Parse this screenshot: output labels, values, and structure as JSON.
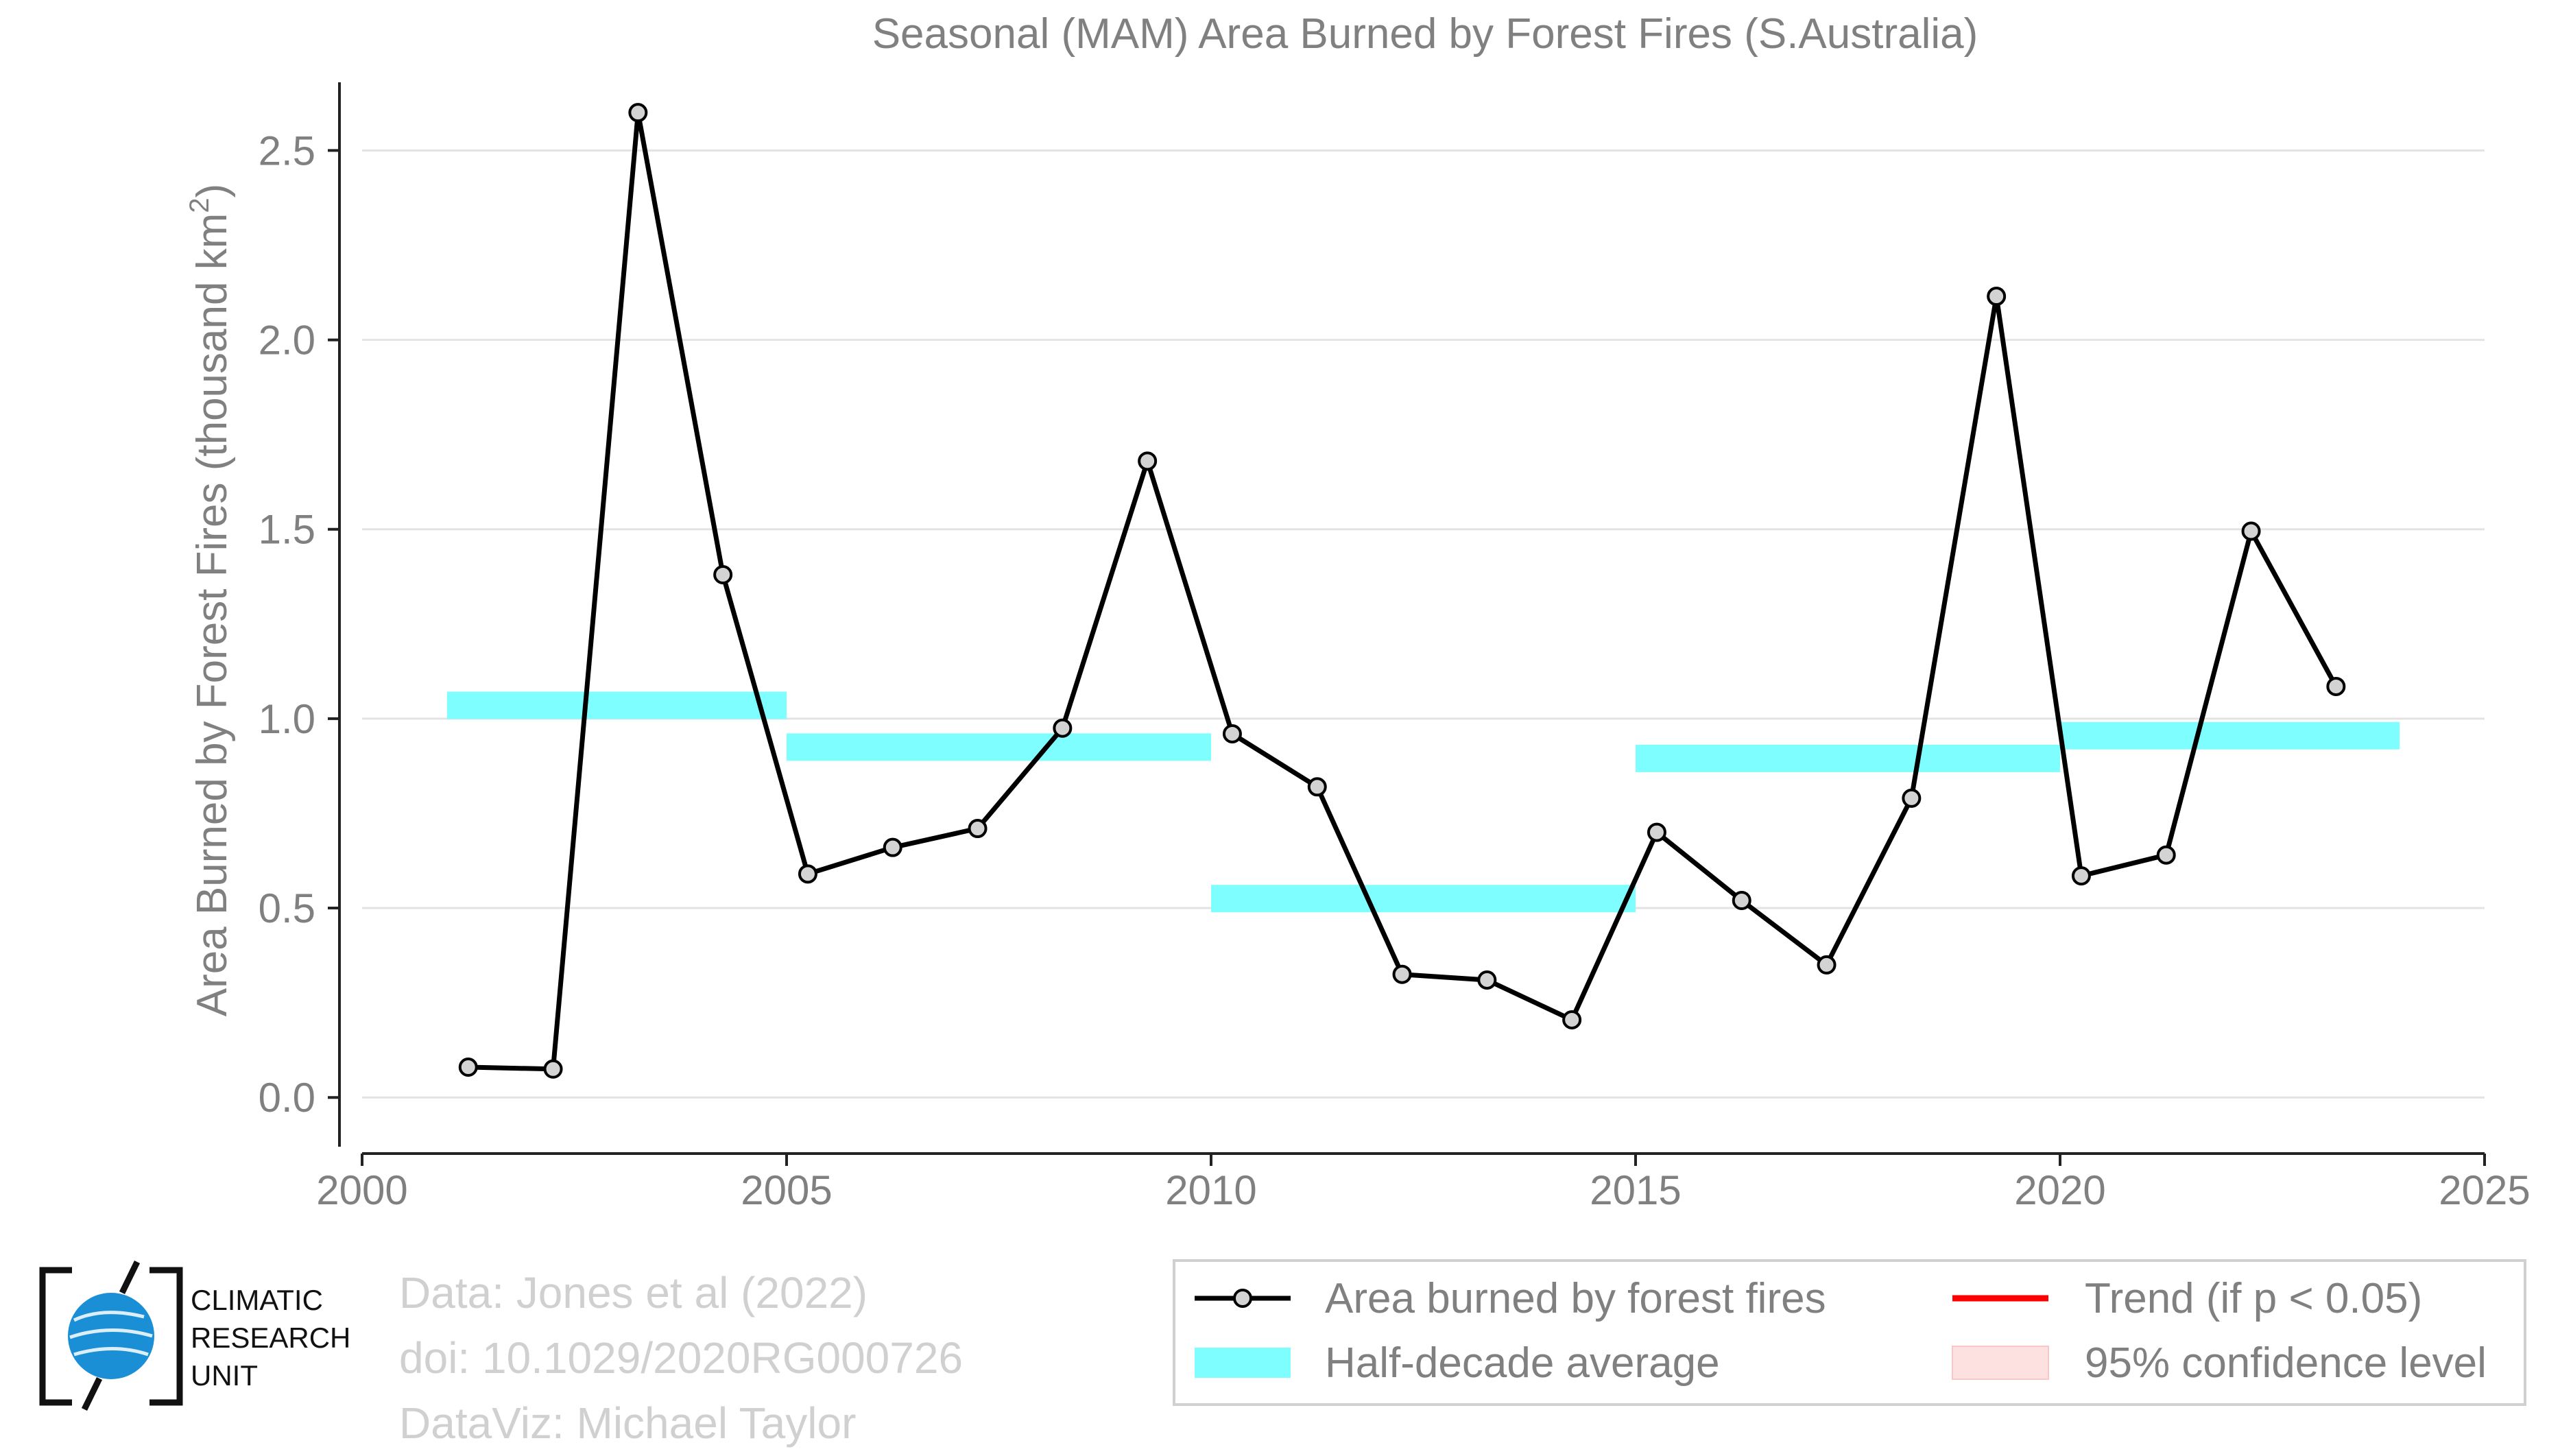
{
  "chart_data": {
    "type": "line",
    "title": "Seasonal (MAM) Area Burned by Forest Fires (S.Australia)",
    "xlabel": "",
    "ylabel": "Area Burned by Forest Fires (thousand km",
    "ylabel_superscript": "2",
    "ylabel_close": ")",
    "xlim": [
      2000,
      2025
    ],
    "ylim": [
      -0.13,
      2.68
    ],
    "x_ticks": [
      2000,
      2005,
      2010,
      2015,
      2020,
      2025
    ],
    "x_tick_labels": [
      "2000",
      "2005",
      "2010",
      "2015",
      "2020",
      "2025"
    ],
    "y_ticks": [
      0.0,
      0.5,
      1.0,
      1.5,
      2.0,
      2.5
    ],
    "y_tick_labels": [
      "0.0",
      "0.5",
      "1.0",
      "1.5",
      "2.0",
      "2.5"
    ],
    "grid": true,
    "series": [
      {
        "name": "Area burned by forest fires",
        "color": "#000000",
        "marker_fill": "#d3d3d3",
        "x": [
          2001.25,
          2002.25,
          2003.25,
          2004.25,
          2005.25,
          2006.25,
          2007.25,
          2008.25,
          2009.25,
          2010.25,
          2011.25,
          2012.25,
          2013.25,
          2014.25,
          2015.25,
          2016.25,
          2017.25,
          2018.25,
          2019.25,
          2020.25,
          2021.25,
          2022.25,
          2023.25
        ],
        "y": [
          0.08,
          0.075,
          2.6,
          1.38,
          0.59,
          0.66,
          0.71,
          0.975,
          1.68,
          0.96,
          0.82,
          0.325,
          0.31,
          0.205,
          0.7,
          0.52,
          0.35,
          0.79,
          2.115,
          0.585,
          0.64,
          1.495,
          1.085
        ]
      }
    ],
    "half_decade_averages": {
      "name": "Half-decade average",
      "color": "#7ffeff",
      "segments": [
        {
          "x_start": 2001,
          "x_end": 2005,
          "y": 1.035
        },
        {
          "x_start": 2005,
          "x_end": 2010,
          "y": 0.925
        },
        {
          "x_start": 2010,
          "x_end": 2015,
          "y": 0.525
        },
        {
          "x_start": 2015,
          "x_end": 2020,
          "y": 0.895
        },
        {
          "x_start": 2020,
          "x_end": 2024,
          "y": 0.955
        }
      ]
    },
    "legend": {
      "placement": "bottom-right",
      "entries": [
        {
          "label": "Area burned by forest fires",
          "kind": "line-marker",
          "color": "#000000"
        },
        {
          "label": "Trend (if p < 0.05)",
          "kind": "line",
          "color": "#ff0000"
        },
        {
          "label": "Half-decade average",
          "kind": "band",
          "color": "#7ffeff"
        },
        {
          "label": "95% confidence level",
          "kind": "band",
          "color": "#fde0e0"
        }
      ]
    }
  },
  "credits": {
    "line1": "Data: Jones et al (2022)",
    "line2": "doi: 10.1029/2020RG000726",
    "line3": "DataViz: Michael Taylor"
  },
  "logo": {
    "line1": "CLIMATIC",
    "line2": "RESEARCH",
    "line3": "UNIT",
    "color": "#1a8fd6"
  }
}
